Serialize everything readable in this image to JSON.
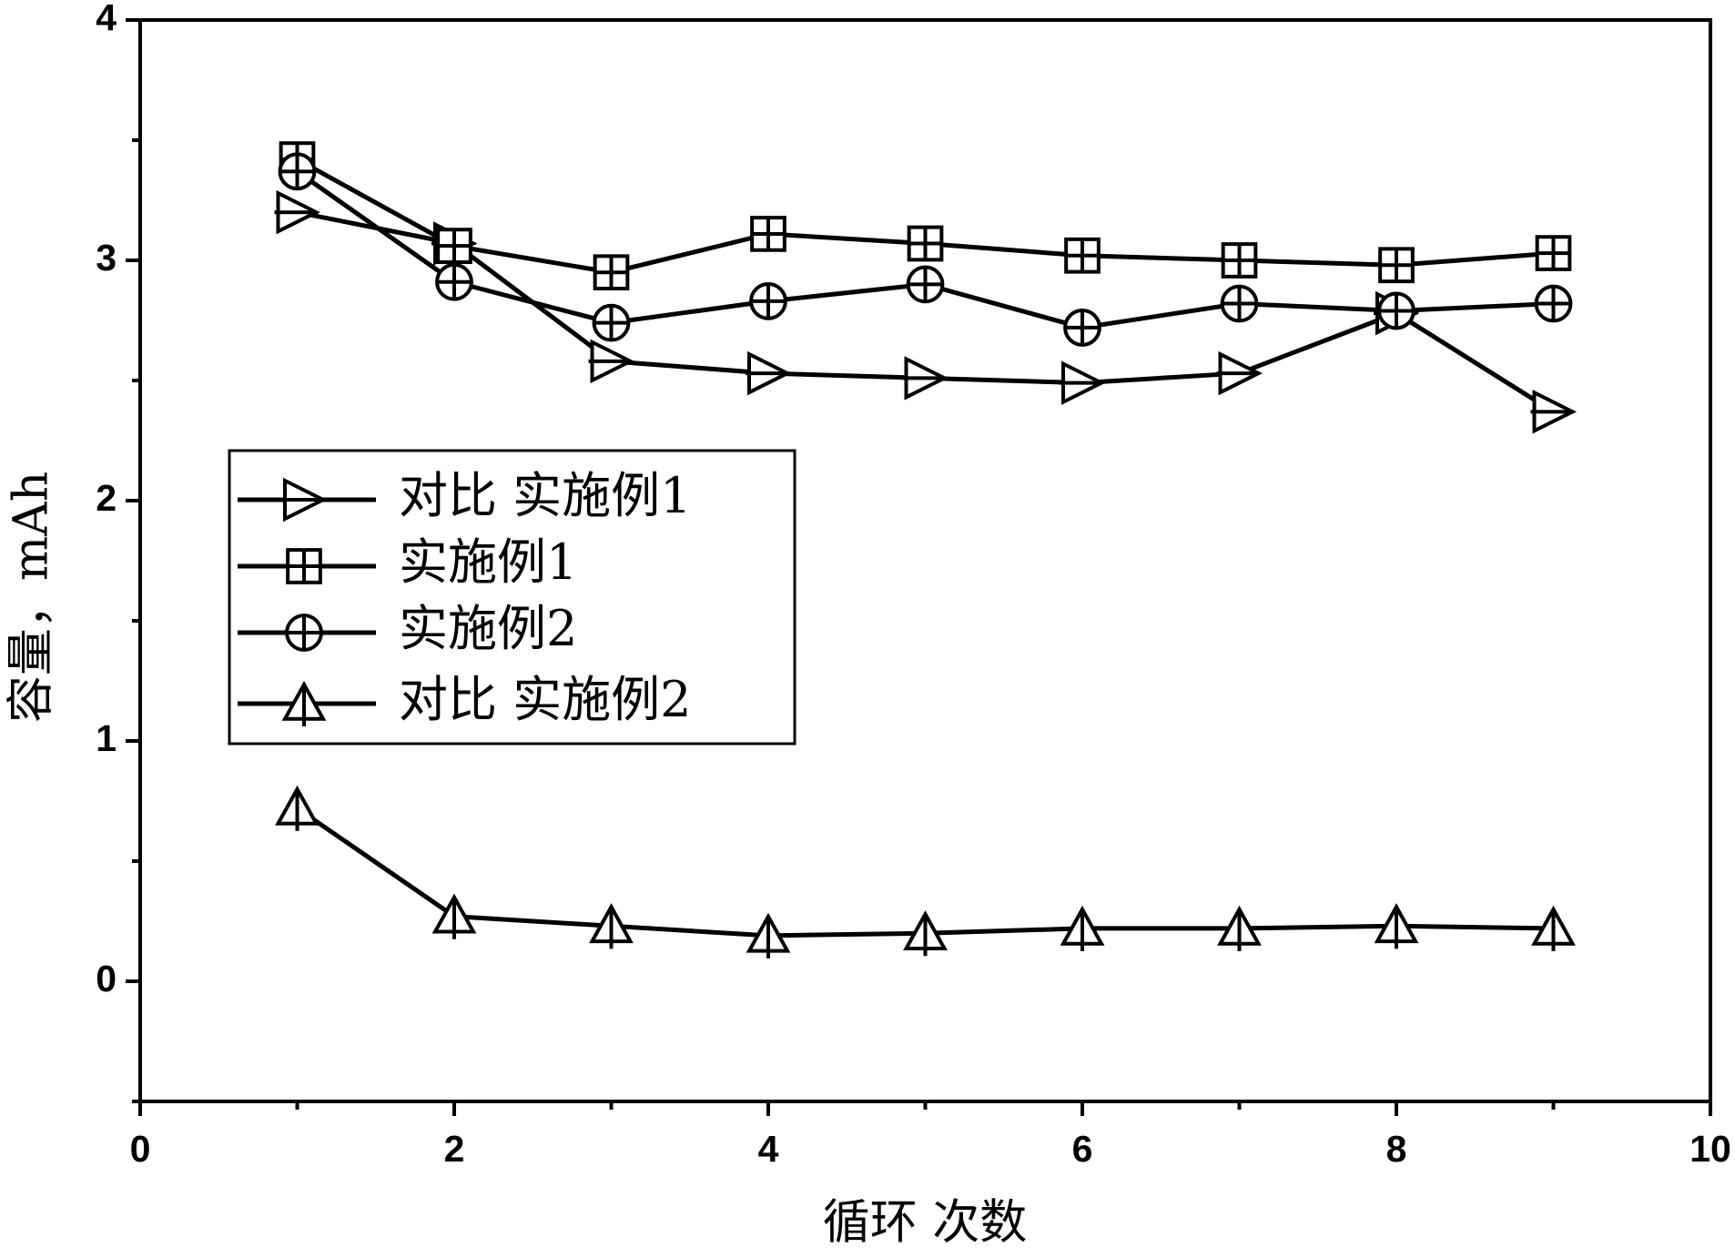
{
  "chart_data": {
    "type": "line",
    "x_label": "循环 次数",
    "y_label": "容量，mAh",
    "x": [
      1,
      2,
      3,
      4,
      5,
      6,
      7,
      8,
      9
    ],
    "series": [
      {
        "name": "对比 实施例1",
        "color": "#000000",
        "marker": "triangle-right",
        "values": [
          3.2,
          3.07,
          2.58,
          2.53,
          2.51,
          2.49,
          2.53,
          2.78,
          2.37
        ]
      },
      {
        "name": "实施例1",
        "color": "#000000",
        "marker": "square-plus",
        "values": [
          3.42,
          3.06,
          2.95,
          3.11,
          3.07,
          3.02,
          3.0,
          2.98,
          3.03
        ]
      },
      {
        "name": "实施例2",
        "color": "#000000",
        "marker": "circle-plus",
        "values": [
          3.37,
          2.91,
          2.74,
          2.83,
          2.9,
          2.72,
          2.82,
          2.79,
          2.82
        ]
      },
      {
        "name": "对比 实施例2",
        "color": "#000000",
        "marker": "triangle-up",
        "values": [
          0.72,
          0.27,
          0.23,
          0.19,
          0.2,
          0.22,
          0.22,
          0.23,
          0.22
        ]
      }
    ],
    "xlim": [
      0,
      10
    ],
    "xticks": [
      0,
      2,
      4,
      6,
      8,
      10
    ],
    "xminor_ticks": [
      1,
      3,
      5,
      7,
      9
    ],
    "ylim": [
      -0.5,
      4
    ],
    "yticks": [
      0,
      1,
      2,
      3,
      4
    ],
    "yminor_ticks": [
      -0.5,
      0.5,
      1.5,
      2.5,
      3.5
    ],
    "grid": false,
    "legend": "left"
  }
}
